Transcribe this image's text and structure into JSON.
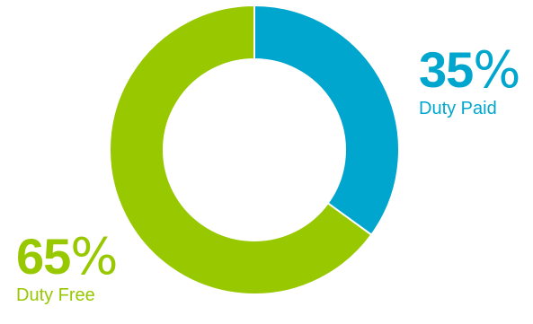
{
  "chart_data": {
    "type": "pie",
    "variant": "donut",
    "categories": [
      "Duty Paid",
      "Duty Free"
    ],
    "values": [
      35,
      65
    ],
    "unit": "%",
    "colors": [
      "#00A6CE",
      "#97C800"
    ],
    "start": "top",
    "direction": "clockwise",
    "legend": "none",
    "labels": [
      {
        "value": "35",
        "sign": "%",
        "name": "Duty Paid"
      },
      {
        "value": "65",
        "sign": "%",
        "name": "Duty Free"
      }
    ]
  }
}
